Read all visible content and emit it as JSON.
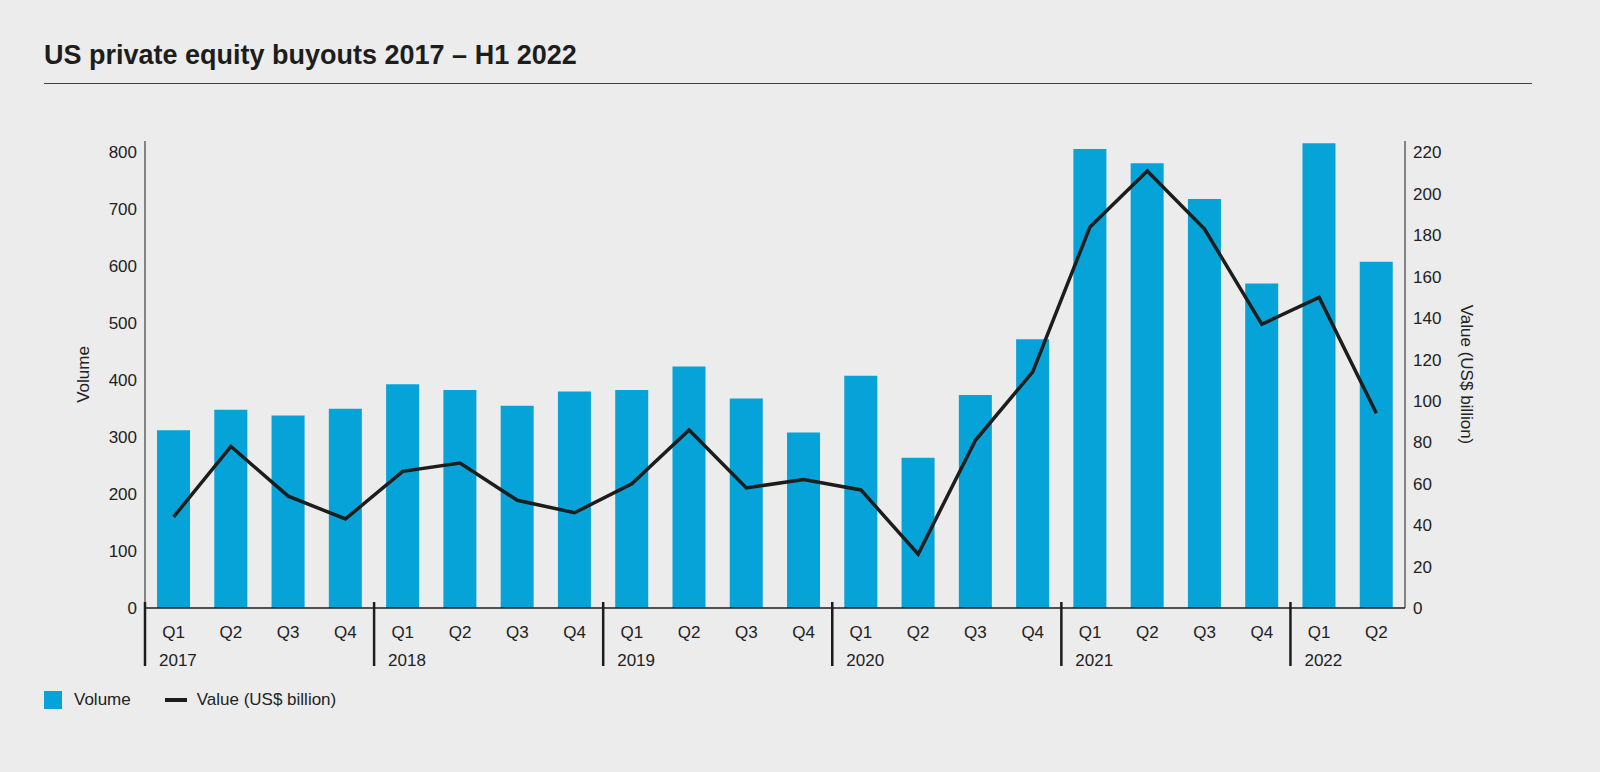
{
  "chart_data": {
    "type": "bar",
    "title": "US private equity buyouts 2017 – H1 2022",
    "categories": [
      "Q1",
      "Q2",
      "Q3",
      "Q4",
      "Q1",
      "Q2",
      "Q3",
      "Q4",
      "Q1",
      "Q2",
      "Q3",
      "Q4",
      "Q1",
      "Q2",
      "Q3",
      "Q4",
      "Q1",
      "Q2",
      "Q3",
      "Q4",
      "Q1",
      "Q2"
    ],
    "category_groups": [
      "2017",
      "2017",
      "2017",
      "2017",
      "2018",
      "2018",
      "2018",
      "2018",
      "2019",
      "2019",
      "2019",
      "2019",
      "2020",
      "2020",
      "2020",
      "2020",
      "2021",
      "2021",
      "2021",
      "2021",
      "2022",
      "2022"
    ],
    "series": [
      {
        "name": "Volume",
        "type": "bar",
        "color": "#06a3d9",
        "values": [
          312,
          348,
          338,
          350,
          393,
          383,
          355,
          380,
          383,
          424,
          368,
          308,
          408,
          264,
          374,
          472,
          806,
          781,
          718,
          570,
          816,
          608
        ]
      },
      {
        "name": "Value (US$ billion)",
        "type": "line",
        "axis": "y2",
        "color": "#1d1d1b",
        "values": [
          44,
          78,
          54,
          43,
          66,
          70,
          52,
          46,
          60,
          86,
          58,
          62,
          57,
          26,
          81,
          114,
          184,
          211,
          183,
          137,
          150,
          94
        ]
      }
    ],
    "ylabel": "Volume",
    "y2label": "Value (US$ billion)",
    "ylim": [
      0,
      820
    ],
    "yticks": [
      0,
      100,
      200,
      300,
      400,
      500,
      600,
      700,
      800
    ],
    "y2lim": [
      0,
      225.5
    ],
    "y2ticks": [
      0,
      20,
      40,
      60,
      80,
      100,
      120,
      140,
      160,
      180,
      200,
      220
    ],
    "grid": false,
    "legend": "bottom left"
  }
}
